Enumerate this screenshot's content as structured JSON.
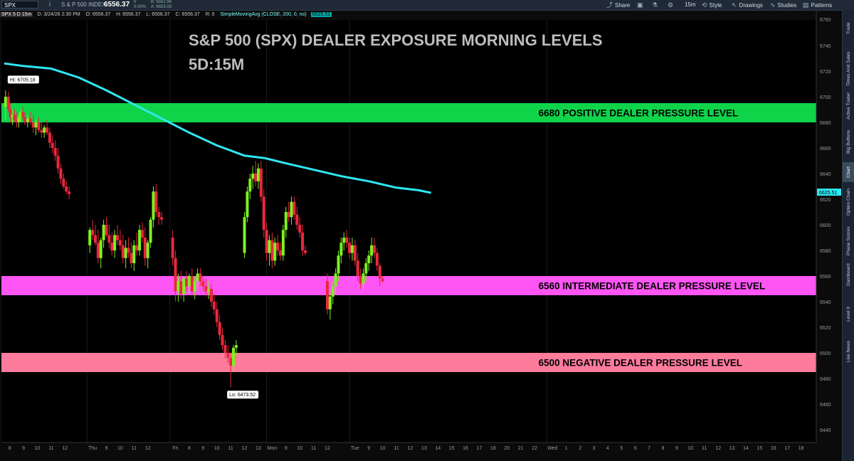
{
  "header": {
    "symbol": "SPX",
    "tick_icon": "i",
    "index_name": "S & P 500 INDEX",
    "last_price": "6556.37",
    "change_top": "0",
    "change_pct": "0.00%",
    "bid": "B: 6561.96",
    "ask": "A: 6653.08",
    "toolbar": {
      "share": "Share",
      "timeframe": "15m",
      "style": "Style",
      "drawings": "Drawings",
      "studies": "Studies",
      "patterns": "Patterns"
    }
  },
  "infobar": {
    "label": "SPX 5 D 15m",
    "date": "D: 3/24/26 2:30 PM",
    "open": "O: 6556.37",
    "high": "H: 6556.37",
    "low": "L: 6556.37",
    "close": "C: 6556.37",
    "r": "R: 0",
    "study": "SimpleMovingAvg (CLOSE, 200, 0, no)",
    "study_value": "6625.51"
  },
  "sidebar": {
    "items": [
      "Trade",
      "Times And Sales",
      "Active Trader",
      "Big Buttons",
      "Chart",
      "Option Chain",
      "Phase Scores",
      "Dashboard",
      "Level II",
      "Live News"
    ],
    "active": "Chart"
  },
  "chart_data": {
    "type": "candlestick",
    "title": "S&P 500 (SPX) DEALER EXPOSURE MORNING LEVELS",
    "subtitle": "5D:15M",
    "xlabel": "",
    "ylabel": "",
    "ylim": [
      6430,
      6760
    ],
    "y_ticks": [
      6440,
      6460,
      6480,
      6500,
      6520,
      6540,
      6560,
      6580,
      6600,
      6620,
      6640,
      6660,
      6680,
      6700,
      6720,
      6740
    ],
    "y_top_label": "6760",
    "x_ticks": [
      {
        "label": "8",
        "x": 0
      },
      {
        "label": "9",
        "x": 1
      },
      {
        "label": "10",
        "x": 2
      },
      {
        "label": "11",
        "x": 3
      },
      {
        "label": "12",
        "x": 4
      },
      {
        "label": "Thu",
        "x": 6
      },
      {
        "label": "9",
        "x": 7
      },
      {
        "label": "10",
        "x": 8
      },
      {
        "label": "11",
        "x": 9
      },
      {
        "label": "12",
        "x": 10
      },
      {
        "label": "Fri",
        "x": 12
      },
      {
        "label": "8",
        "x": 13
      },
      {
        "label": "9",
        "x": 14
      },
      {
        "label": "10",
        "x": 15
      },
      {
        "label": "11",
        "x": 16
      },
      {
        "label": "12",
        "x": 17
      },
      {
        "label": "13",
        "x": 18
      },
      {
        "label": "Mon",
        "x": 19
      },
      {
        "label": "9",
        "x": 20
      },
      {
        "label": "10",
        "x": 21
      },
      {
        "label": "11",
        "x": 22
      },
      {
        "label": "12",
        "x": 23
      },
      {
        "label": "Tue",
        "x": 25
      },
      {
        "label": "9",
        "x": 26
      },
      {
        "label": "10",
        "x": 27
      },
      {
        "label": "11",
        "x": 28
      },
      {
        "label": "12",
        "x": 29
      },
      {
        "label": "13",
        "x": 30
      },
      {
        "label": "14",
        "x": 31
      },
      {
        "label": "15",
        "x": 32
      },
      {
        "label": "16",
        "x": 33
      },
      {
        "label": "17",
        "x": 34
      },
      {
        "label": "18",
        "x": 35
      },
      {
        "label": "20",
        "x": 36
      },
      {
        "label": "21",
        "x": 37
      },
      {
        "label": "22",
        "x": 38
      },
      {
        "label": "Wed",
        "x": 39.3
      },
      {
        "label": "1",
        "x": 40.3
      },
      {
        "label": "2",
        "x": 41.3
      },
      {
        "label": "3",
        "x": 42.3
      },
      {
        "label": "4",
        "x": 43.3
      },
      {
        "label": "5",
        "x": 44.3
      },
      {
        "label": "6",
        "x": 45.3
      },
      {
        "label": "7",
        "x": 46.3
      },
      {
        "label": "8",
        "x": 47.3
      },
      {
        "label": "9",
        "x": 48.3
      },
      {
        "label": "10",
        "x": 49.3
      },
      {
        "label": "11",
        "x": 50.3
      },
      {
        "label": "12",
        "x": 51.3
      },
      {
        "label": "13",
        "x": 52.3
      },
      {
        "label": "14",
        "x": 53.3
      },
      {
        "label": "15",
        "x": 54.3
      },
      {
        "label": "16",
        "x": 55.3
      },
      {
        "label": "17",
        "x": 56.3
      },
      {
        "label": "18",
        "x": 57.3
      }
    ],
    "x_range": [
      -0.6,
      58.4
    ],
    "day_separators": [
      5.6,
      11.6,
      18.6,
      24.6,
      38.9
    ],
    "levels": [
      {
        "label": "6680 POSITIVE DEALER PRESSURE LEVEL",
        "low": 6680,
        "high": 6695,
        "color": "#0fd44a"
      },
      {
        "label": "6560 INTERMEDIATE DEALER PRESSURE LEVEL",
        "low": 6545,
        "high": 6560,
        "color": "#ff55f4"
      },
      {
        "label": "6500 NEGATIVE DEALER PRESSURE LEVEL",
        "low": 6485,
        "high": 6500,
        "color": "#ff7b9c"
      }
    ],
    "hi_label": "Hi: 6705.18",
    "lo_label": "Lo: 6473.52",
    "sma": {
      "name": "SimpleMovingAvg (CLOSE, 200, 0, no)",
      "value": "6625.51",
      "color": "#2ee8f2",
      "points": [
        [
          -0.4,
          6726
        ],
        [
          1,
          6724
        ],
        [
          3,
          6722
        ],
        [
          5,
          6715
        ],
        [
          7,
          6705
        ],
        [
          9,
          6694
        ],
        [
          11,
          6683
        ],
        [
          13,
          6672
        ],
        [
          15,
          6662
        ],
        [
          17,
          6654
        ],
        [
          18.5,
          6652
        ],
        [
          20,
          6648
        ],
        [
          22,
          6643
        ],
        [
          24,
          6638
        ],
        [
          26,
          6634
        ],
        [
          28,
          6629
        ],
        [
          29.6,
          6627
        ],
        [
          30.5,
          6625
        ]
      ]
    },
    "colors": {
      "up": "#7cf21e",
      "down": "#e8283d"
    },
    "candles": [
      [
        -0.3,
        6692,
        6705,
        6682,
        6700
      ],
      [
        -0.1,
        6700,
        6704,
        6688,
        6690
      ],
      [
        0.05,
        6690,
        6695,
        6680,
        6684
      ],
      [
        0.2,
        6684,
        6690,
        6678,
        6686
      ],
      [
        0.35,
        6686,
        6690,
        6680,
        6682
      ],
      [
        0.5,
        6682,
        6688,
        6676,
        6680
      ],
      [
        0.65,
        6680,
        6686,
        6676,
        6684
      ],
      [
        0.8,
        6684,
        6690,
        6680,
        6688
      ],
      [
        0.95,
        6688,
        6692,
        6682,
        6684
      ],
      [
        1.1,
        6684,
        6688,
        6678,
        6680
      ],
      [
        1.3,
        6680,
        6685,
        6676,
        6683
      ],
      [
        1.5,
        6683,
        6688,
        6678,
        6680
      ],
      [
        1.7,
        6680,
        6686,
        6672,
        6676
      ],
      [
        1.9,
        6676,
        6682,
        6670,
        6680
      ],
      [
        2.1,
        6680,
        6684,
        6672,
        6674
      ],
      [
        2.3,
        6674,
        6680,
        6668,
        6672
      ],
      [
        2.5,
        6672,
        6678,
        6668,
        6676
      ],
      [
        2.7,
        6676,
        6682,
        6670,
        6672
      ],
      [
        2.9,
        6672,
        6676,
        6660,
        6664
      ],
      [
        3.1,
        6664,
        6670,
        6656,
        6660
      ],
      [
        3.3,
        6660,
        6666,
        6650,
        6654
      ],
      [
        3.5,
        6654,
        6660,
        6640,
        6644
      ],
      [
        3.7,
        6644,
        6648,
        6632,
        6636
      ],
      [
        3.9,
        6636,
        6640,
        6628,
        6630
      ],
      [
        4.1,
        6630,
        6634,
        6624,
        6626
      ],
      [
        4.3,
        6626,
        6630,
        6620,
        6624
      ],
      [
        5.8,
        6584,
        6598,
        6578,
        6596
      ],
      [
        6.0,
        6596,
        6604,
        6588,
        6592
      ],
      [
        6.2,
        6592,
        6600,
        6584,
        6586
      ],
      [
        6.4,
        6586,
        6596,
        6570,
        6574
      ],
      [
        6.6,
        6574,
        6590,
        6566,
        6588
      ],
      [
        6.8,
        6588,
        6604,
        6582,
        6600
      ],
      [
        7.0,
        6600,
        6606,
        6590,
        6592
      ],
      [
        7.2,
        6592,
        6600,
        6582,
        6586
      ],
      [
        7.4,
        6586,
        6594,
        6576,
        6580
      ],
      [
        7.6,
        6580,
        6596,
        6574,
        6592
      ],
      [
        7.8,
        6592,
        6600,
        6584,
        6588
      ],
      [
        8.0,
        6588,
        6596,
        6580,
        6584
      ],
      [
        8.2,
        6584,
        6592,
        6570,
        6574
      ],
      [
        8.4,
        6574,
        6588,
        6566,
        6582
      ],
      [
        8.6,
        6582,
        6590,
        6574,
        6578
      ],
      [
        8.8,
        6578,
        6586,
        6566,
        6570
      ],
      [
        9.0,
        6570,
        6588,
        6564,
        6584
      ],
      [
        9.2,
        6584,
        6594,
        6576,
        6580
      ],
      [
        9.4,
        6580,
        6600,
        6576,
        6596
      ],
      [
        9.6,
        6596,
        6602,
        6586,
        6590
      ],
      [
        9.8,
        6590,
        6598,
        6568,
        6574
      ],
      [
        10.0,
        6574,
        6588,
        6566,
        6586
      ],
      [
        10.2,
        6586,
        6606,
        6582,
        6604
      ],
      [
        10.4,
        6604,
        6630,
        6598,
        6626
      ],
      [
        10.6,
        6626,
        6632,
        6606,
        6610
      ],
      [
        10.8,
        6610,
        6614,
        6600,
        6606
      ],
      [
        11.0,
        6606,
        6610,
        6600,
        6604
      ],
      [
        11.8,
        6590,
        6596,
        6568,
        6574
      ],
      [
        12.0,
        6574,
        6580,
        6540,
        6548
      ],
      [
        12.2,
        6548,
        6562,
        6540,
        6556
      ],
      [
        12.4,
        6556,
        6564,
        6542,
        6546
      ],
      [
        12.6,
        6546,
        6560,
        6540,
        6558
      ],
      [
        12.8,
        6558,
        6564,
        6548,
        6552
      ],
      [
        13.0,
        6552,
        6562,
        6546,
        6560
      ],
      [
        13.2,
        6560,
        6566,
        6544,
        6548
      ],
      [
        13.4,
        6548,
        6560,
        6542,
        6556
      ],
      [
        13.6,
        6556,
        6566,
        6550,
        6562
      ],
      [
        13.8,
        6562,
        6566,
        6552,
        6556
      ],
      [
        14.0,
        6556,
        6560,
        6548,
        6552
      ],
      [
        14.2,
        6552,
        6558,
        6544,
        6548
      ],
      [
        14.4,
        6548,
        6556,
        6542,
        6550
      ],
      [
        14.6,
        6550,
        6554,
        6536,
        6540
      ],
      [
        14.8,
        6540,
        6546,
        6530,
        6534
      ],
      [
        15.0,
        6534,
        6540,
        6520,
        6524
      ],
      [
        15.2,
        6524,
        6530,
        6510,
        6514
      ],
      [
        15.4,
        6514,
        6520,
        6502,
        6506
      ],
      [
        15.6,
        6506,
        6510,
        6496,
        6500
      ],
      [
        15.8,
        6500,
        6506,
        6492,
        6496
      ],
      [
        16.0,
        6496,
        6500,
        6473,
        6490
      ],
      [
        16.2,
        6490,
        6506,
        6486,
        6504
      ],
      [
        16.4,
        6504,
        6510,
        6498,
        6506
      ],
      [
        17.0,
        6578,
        6610,
        6574,
        6606
      ],
      [
        17.2,
        6606,
        6630,
        6602,
        6626
      ],
      [
        17.4,
        6626,
        6640,
        6620,
        6636
      ],
      [
        17.6,
        6636,
        6646,
        6628,
        6640
      ],
      [
        17.8,
        6640,
        6650,
        6630,
        6634
      ],
      [
        18.0,
        6634,
        6648,
        6628,
        6644
      ],
      [
        18.2,
        6644,
        6650,
        6618,
        6622
      ],
      [
        18.4,
        6622,
        6628,
        6590,
        6596
      ],
      [
        18.6,
        6596,
        6602,
        6572,
        6578
      ],
      [
        18.8,
        6578,
        6592,
        6568,
        6588
      ],
      [
        19.0,
        6588,
        6594,
        6566,
        6572
      ],
      [
        19.2,
        6572,
        6590,
        6568,
        6586
      ],
      [
        19.4,
        6586,
        6592,
        6576,
        6580
      ],
      [
        19.6,
        6580,
        6586,
        6572,
        6576
      ],
      [
        19.8,
        6576,
        6600,
        6572,
        6596
      ],
      [
        20.0,
        6596,
        6614,
        6590,
        6610
      ],
      [
        20.2,
        6610,
        6618,
        6602,
        6606
      ],
      [
        20.4,
        6606,
        6622,
        6600,
        6618
      ],
      [
        20.6,
        6618,
        6622,
        6604,
        6608
      ],
      [
        20.8,
        6608,
        6614,
        6596,
        6600
      ],
      [
        21.0,
        6600,
        6606,
        6590,
        6594
      ],
      [
        21.2,
        6594,
        6600,
        6576,
        6580
      ],
      [
        21.4,
        6580,
        6584,
        6576,
        6578
      ],
      [
        23.0,
        6556,
        6562,
        6530,
        6534
      ],
      [
        23.2,
        6534,
        6548,
        6526,
        6544
      ],
      [
        23.4,
        6544,
        6556,
        6538,
        6552
      ],
      [
        23.6,
        6552,
        6566,
        6546,
        6562
      ],
      [
        23.8,
        6562,
        6580,
        6556,
        6576
      ],
      [
        24.0,
        6576,
        6590,
        6570,
        6586
      ],
      [
        24.2,
        6586,
        6594,
        6580,
        6590
      ],
      [
        24.4,
        6590,
        6596,
        6582,
        6586
      ],
      [
        24.6,
        6586,
        6590,
        6574,
        6578
      ],
      [
        24.8,
        6578,
        6590,
        6572,
        6584
      ],
      [
        25.0,
        6584,
        6588,
        6568,
        6572
      ],
      [
        25.2,
        6572,
        6578,
        6556,
        6560
      ],
      [
        25.4,
        6560,
        6566,
        6550,
        6554
      ],
      [
        25.6,
        6554,
        6566,
        6550,
        6562
      ],
      [
        25.8,
        6562,
        6574,
        6556,
        6570
      ],
      [
        26.0,
        6570,
        6580,
        6564,
        6576
      ],
      [
        26.2,
        6576,
        6590,
        6570,
        6584
      ],
      [
        26.4,
        6584,
        6590,
        6574,
        6578
      ],
      [
        26.6,
        6578,
        6582,
        6564,
        6568
      ],
      [
        26.8,
        6568,
        6570,
        6552,
        6558
      ],
      [
        27.0,
        6558,
        6560,
        6555,
        6556
      ]
    ]
  }
}
